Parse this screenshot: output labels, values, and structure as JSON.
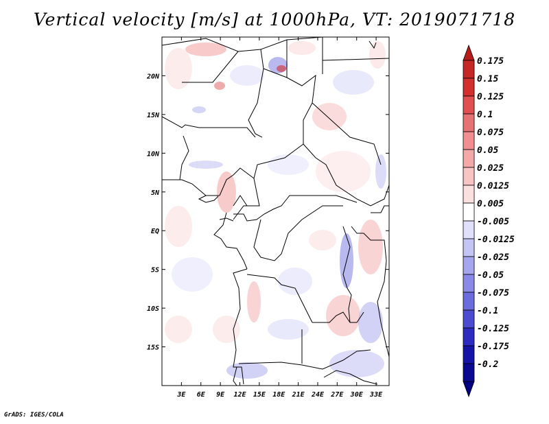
{
  "title": "Vertical velocity [m/s] at 1000hPa, VT: 2019071718",
  "credit": "GrADS: IGES/COLA",
  "map": {
    "lon_ticks": [
      "3E",
      "6E",
      "9E",
      "12E",
      "15E",
      "18E",
      "21E",
      "24E",
      "27E",
      "30E",
      "33E"
    ],
    "lat_ticks": [
      "20N",
      "15N",
      "10N",
      "5N",
      "EQ",
      "5S",
      "10S",
      "15S"
    ],
    "lon_range": [
      0,
      35
    ],
    "lat_range": [
      -20,
      25
    ]
  },
  "colorbar": {
    "labels": [
      "0.175",
      "0.15",
      "0.125",
      "0.1",
      "0.075",
      "0.05",
      "0.025",
      "0.0125",
      "0.005",
      "-0.005",
      "-0.0125",
      "-0.025",
      "-0.05",
      "-0.075",
      "-0.1",
      "-0.125",
      "-0.175",
      "-0.2"
    ],
    "colors": [
      "#b71c1c",
      "#c62828",
      "#d32f2f",
      "#e05050",
      "#e57373",
      "#ef8f8f",
      "#f4a9a9",
      "#f8c4c4",
      "#fbe0e0",
      "#ffffff",
      "#e0e0fb",
      "#c4c4f5",
      "#a6a6ee",
      "#8a8ae6",
      "#6c6cdc",
      "#4c4cd0",
      "#2c2cc0",
      "#1414a8",
      "#0a0a90",
      "#000080"
    ]
  }
}
